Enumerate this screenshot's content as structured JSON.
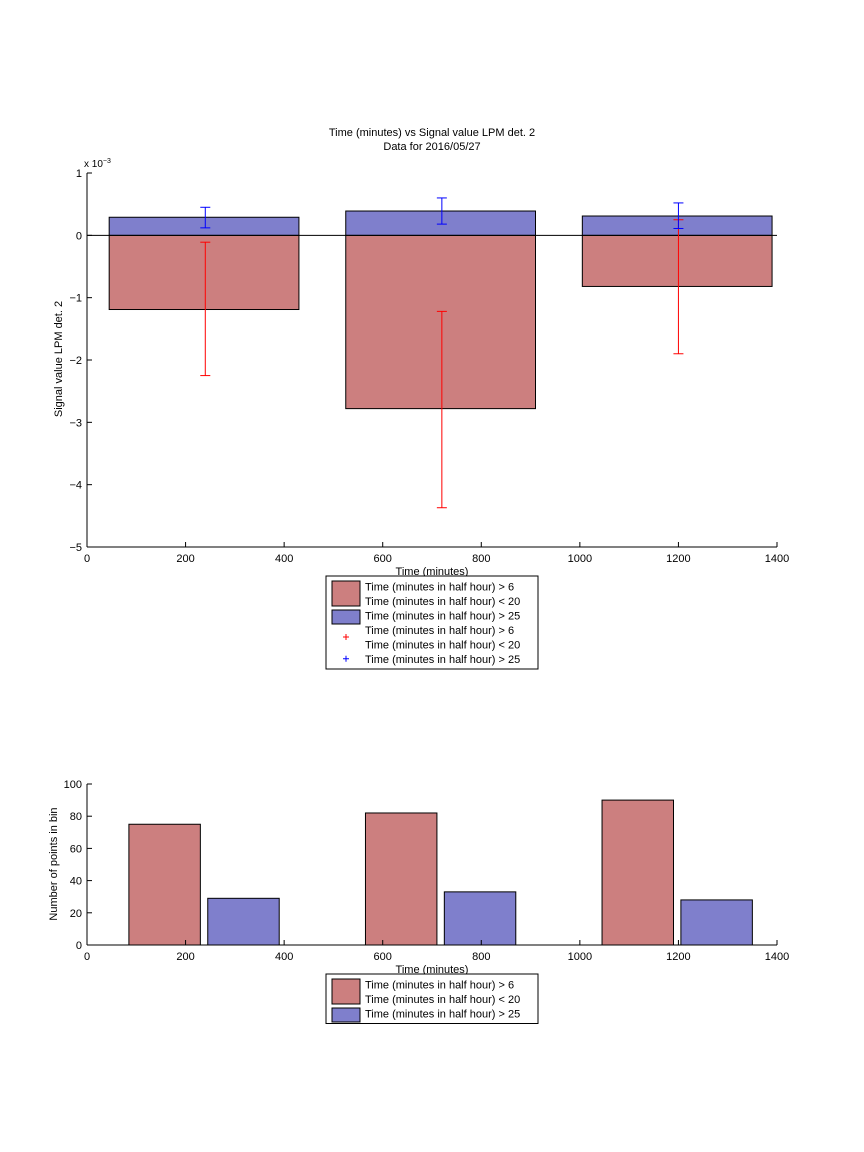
{
  "chart_data": [
    {
      "type": "bar",
      "title": "Time (minutes) vs Signal value LPM det. 2",
      "subtitle": "Data for 2016/05/27",
      "xlabel": "Time (minutes)",
      "ylabel": "Signal value LPM det. 2",
      "y_exponent_label": "x 10",
      "y_exponent_power": "−3",
      "xlim": [
        0,
        1400
      ],
      "ylim": [
        -5,
        1
      ],
      "y_scale_factor": 0.001,
      "xticks": [
        0,
        200,
        400,
        600,
        800,
        1000,
        1200,
        1400
      ],
      "yticks": [
        -5,
        -4,
        -3,
        -2,
        -1,
        0,
        1
      ],
      "grid": false,
      "legend_position": "below",
      "legend": [
        {
          "kind": "patch",
          "color": "#cc7f7f",
          "lines": [
            "Time (minutes in half hour) > 6",
            "Time (minutes in half hour) < 20"
          ]
        },
        {
          "kind": "patch",
          "color": "#7f7fcc",
          "lines": [
            "Time (minutes in half hour) > 25"
          ]
        },
        {
          "kind": "marker",
          "color": "#ff0000",
          "lines": [
            "Time (minutes in half hour) > 6",
            "Time (minutes in half hour) < 20"
          ]
        },
        {
          "kind": "marker",
          "color": "#0000ff",
          "lines": [
            "Time (minutes in half hour) > 25"
          ]
        }
      ],
      "series": [
        {
          "color": "#cc7f7f",
          "error_color": "#ff0000",
          "bars": [
            {
              "x0": 45,
              "x1": 430,
              "value": -1.19,
              "err_x": 240,
              "err_low": -2.25,
              "err_high": -0.11
            },
            {
              "x0": 525,
              "x1": 910,
              "value": -2.78,
              "err_x": 720,
              "err_low": -4.37,
              "err_high": -1.22
            },
            {
              "x0": 1005,
              "x1": 1390,
              "value": -0.82,
              "err_x": 1200,
              "err_low": -1.9,
              "err_high": 0.25
            }
          ]
        },
        {
          "color": "#7f7fcc",
          "error_color": "#0000ff",
          "bars": [
            {
              "x0": 45,
              "x1": 430,
              "value": 0.29,
              "err_x": 240,
              "err_low": 0.12,
              "err_high": 0.45
            },
            {
              "x0": 525,
              "x1": 910,
              "value": 0.39,
              "err_x": 720,
              "err_low": 0.18,
              "err_high": 0.6
            },
            {
              "x0": 1005,
              "x1": 1390,
              "value": 0.31,
              "err_x": 1200,
              "err_low": 0.11,
              "err_high": 0.52
            }
          ]
        }
      ]
    },
    {
      "type": "bar",
      "xlabel": "Time (minutes)",
      "ylabel": "Number of points in bin",
      "xlim": [
        0,
        1400
      ],
      "ylim": [
        0,
        100
      ],
      "xticks": [
        0,
        200,
        400,
        600,
        800,
        1000,
        1200,
        1400
      ],
      "yticks": [
        0,
        20,
        40,
        60,
        80,
        100
      ],
      "grid": false,
      "legend_position": "below",
      "legend": [
        {
          "kind": "patch",
          "color": "#cc7f7f",
          "lines": [
            "Time (minutes in half hour) > 6",
            "Time (minutes in half hour) < 20"
          ]
        },
        {
          "kind": "patch",
          "color": "#7f7fcc",
          "lines": [
            "Time (minutes in half hour) > 25"
          ]
        }
      ],
      "series": [
        {
          "color": "#cc7f7f",
          "bars": [
            {
              "x0": 85,
              "x1": 230,
              "value": 75
            },
            {
              "x0": 565,
              "x1": 710,
              "value": 82
            },
            {
              "x0": 1045,
              "x1": 1190,
              "value": 90
            }
          ]
        },
        {
          "color": "#7f7fcc",
          "bars": [
            {
              "x0": 245,
              "x1": 390,
              "value": 29
            },
            {
              "x0": 725,
              "x1": 870,
              "value": 33
            },
            {
              "x0": 1205,
              "x1": 1350,
              "value": 28
            }
          ]
        }
      ]
    }
  ]
}
